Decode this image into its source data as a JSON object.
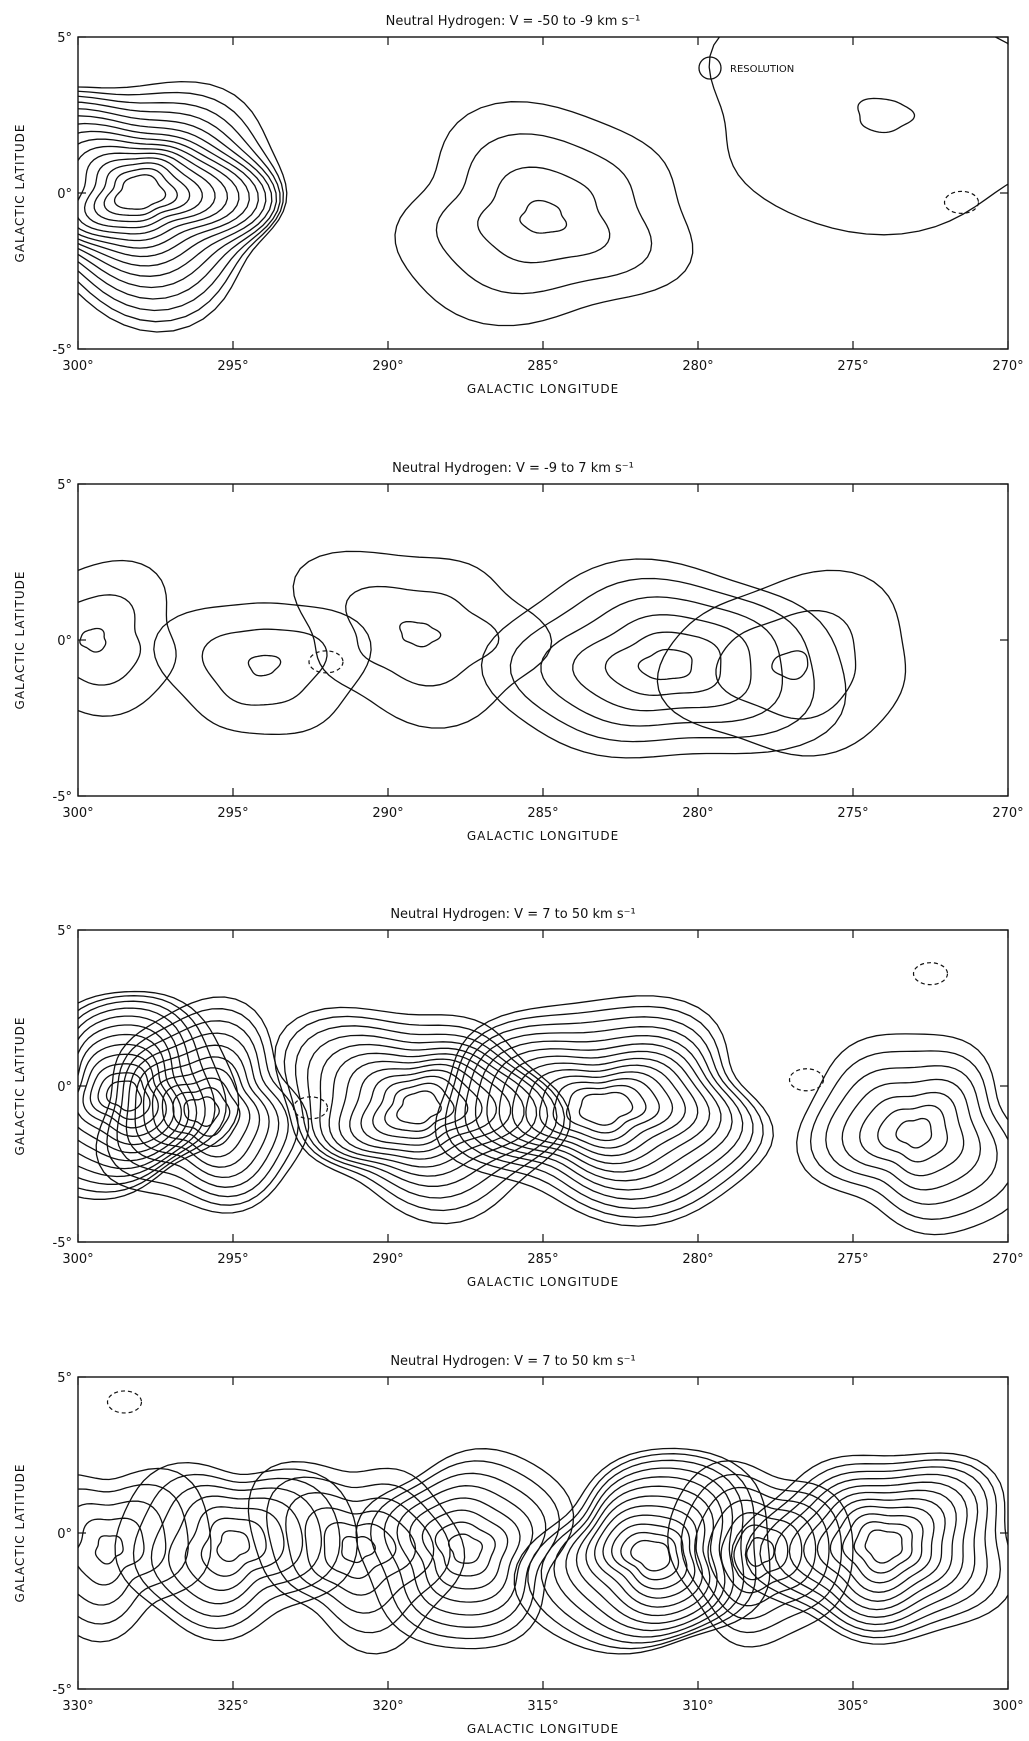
{
  "chart_data": [
    {
      "type": "contour",
      "title": "Neutral Hydrogen: V = -50 to -9 km s⁻¹",
      "xlabel": "GALACTIC LONGITUDE",
      "ylabel": "GALACTIC LATITUDE",
      "xlim": [
        300,
        270
      ],
      "ylim": [
        -5,
        5
      ],
      "xticks": [
        "300°",
        "295°",
        "290°",
        "285°",
        "280°",
        "275°",
        "270°"
      ],
      "yticks": [
        "5°",
        "0°",
        "-5°"
      ],
      "annotation": "RESOLUTION",
      "peaks": [
        {
          "l": 298,
          "b": 0,
          "levels": 15,
          "rx": 5,
          "ry": 3.6
        },
        {
          "l": 285,
          "b": -0.8,
          "levels": 4,
          "rx": 5,
          "ry": 3.2
        },
        {
          "l": 274,
          "b": 2.5,
          "levels": 2,
          "rx": 6,
          "ry": 3.5
        }
      ],
      "negative": [
        {
          "l": 271.5,
          "b": -0.3
        }
      ]
    },
    {
      "type": "contour",
      "title": "Neutral Hydrogen: V = -9 to 7 km s⁻¹",
      "xlabel": "GALACTIC LONGITUDE",
      "ylabel": "GALACTIC LATITUDE",
      "xlim": [
        300,
        270
      ],
      "ylim": [
        -5,
        5
      ],
      "xticks": [
        "300°",
        "295°",
        "290°",
        "285°",
        "280°",
        "275°",
        "270°"
      ],
      "yticks": [
        "5°",
        "0°",
        "-5°"
      ],
      "peaks": [
        {
          "l": 299.5,
          "b": 0,
          "levels": 3,
          "rx": 3,
          "ry": 2.2
        },
        {
          "l": 294,
          "b": -0.8,
          "levels": 3,
          "rx": 3,
          "ry": 2.4
        },
        {
          "l": 289,
          "b": 0.2,
          "levels": 3,
          "rx": 4,
          "ry": 2.6
        },
        {
          "l": 281,
          "b": -0.8,
          "levels": 6,
          "rx": 5.5,
          "ry": 3.3
        },
        {
          "l": 277,
          "b": -0.8,
          "levels": 3,
          "rx": 4,
          "ry": 2.8
        }
      ],
      "negative": [
        {
          "l": 292,
          "b": -0.7
        }
      ]
    },
    {
      "type": "contour",
      "title": "Neutral Hydrogen: V = 7 to 50 km s⁻¹",
      "xlabel": "GALACTIC LONGITUDE",
      "ylabel": "GALACTIC LATITUDE",
      "xlim": [
        300,
        270
      ],
      "ylim": [
        -5,
        5
      ],
      "xticks": [
        "300°",
        "295°",
        "290°",
        "285°",
        "280°",
        "275°",
        "270°"
      ],
      "yticks": [
        "5°",
        "0°",
        "-5°"
      ],
      "peaks": [
        {
          "l": 298.5,
          "b": -0.3,
          "levels": 12,
          "rx": 3.5,
          "ry": 3.2
        },
        {
          "l": 296,
          "b": -0.8,
          "levels": 10,
          "rx": 3.5,
          "ry": 3.1
        },
        {
          "l": 289,
          "b": -0.7,
          "levels": 12,
          "rx": 4.5,
          "ry": 3.3
        },
        {
          "l": 283,
          "b": -0.7,
          "levels": 13,
          "rx": 5.5,
          "ry": 3.4
        },
        {
          "l": 273,
          "b": -1.5,
          "levels": 7,
          "rx": 3.5,
          "ry": 3.2
        }
      ],
      "negative": [
        {
          "l": 276.5,
          "b": 0.2
        },
        {
          "l": 272.5,
          "b": 3.6
        },
        {
          "l": 292.5,
          "b": -0.7
        }
      ]
    },
    {
      "type": "contour",
      "title": "Neutral Hydrogen: V = 7 to 50 km s⁻¹",
      "xlabel": "GALACTIC LONGITUDE",
      "ylabel": "GALACTIC LATITUDE",
      "xlim": [
        330,
        300
      ],
      "ylim": [
        -5,
        5
      ],
      "xticks": [
        "330°",
        "325°",
        "320°",
        "315°",
        "310°",
        "305°",
        "300°"
      ],
      "yticks": [
        "5°",
        "0°",
        "-5°"
      ],
      "peaks": [
        {
          "l": 329,
          "b": -0.5,
          "levels": 5,
          "rx": 3,
          "ry": 2.8
        },
        {
          "l": 325,
          "b": -0.4,
          "levels": 7,
          "rx": 3.5,
          "ry": 3
        },
        {
          "l": 321,
          "b": -0.5,
          "levels": 6,
          "rx": 3.2,
          "ry": 3
        },
        {
          "l": 317.5,
          "b": -0.5,
          "levels": 8,
          "rx": 3.5,
          "ry": 3
        },
        {
          "l": 311.5,
          "b": -0.7,
          "levels": 12,
          "rx": 4,
          "ry": 3.2
        },
        {
          "l": 308,
          "b": -0.6,
          "levels": 7,
          "rx": 2.8,
          "ry": 3
        },
        {
          "l": 304,
          "b": -0.4,
          "levels": 11,
          "rx": 4.2,
          "ry": 3.2
        }
      ],
      "negative": [
        {
          "l": 328.5,
          "b": 4.2
        }
      ]
    }
  ]
}
